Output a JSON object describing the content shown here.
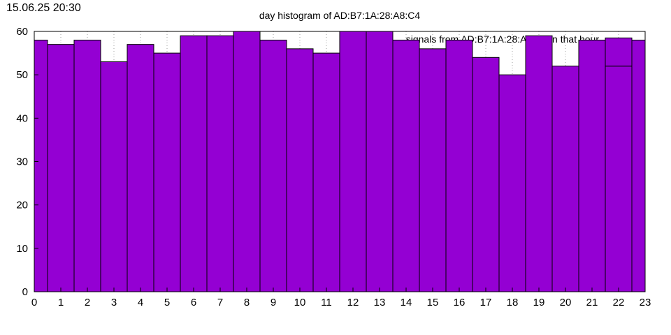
{
  "timestamp": "15.06.25 20:30",
  "colors": {
    "bar": "#9400d3",
    "bar_stroke": "#000000",
    "grid": "#a0a0a0",
    "axis": "#000000"
  },
  "chart_data": {
    "type": "bar",
    "title": "day histogram of AD:B7:1A:28:A8:C4",
    "legend": "signals from AD:B7:1A:28:A8:C4 in that hour",
    "legend_placement": "top-right",
    "x": [
      0,
      1,
      2,
      3,
      4,
      5,
      6,
      7,
      8,
      9,
      10,
      11,
      12,
      13,
      14,
      15,
      16,
      17,
      18,
      19,
      20,
      21,
      22,
      23
    ],
    "xticks": [
      "0",
      "1",
      "2",
      "3",
      "4",
      "5",
      "6",
      "7",
      "8",
      "9",
      "10",
      "11",
      "12",
      "13",
      "14",
      "15",
      "16",
      "17",
      "18",
      "19",
      "20",
      "21",
      "22",
      "23"
    ],
    "xlim": [
      0,
      23
    ],
    "ylim": [
      0,
      60
    ],
    "yticks": [
      "0",
      "10",
      "20",
      "30",
      "40",
      "50",
      "60"
    ],
    "grid": true,
    "values": [
      58,
      57,
      58,
      53,
      57,
      55,
      59,
      59,
      60,
      58,
      56,
      55,
      60,
      60,
      58,
      56,
      58,
      54,
      50,
      59,
      52,
      58,
      52,
      58
    ],
    "values_secondary_22": 58.5
  }
}
